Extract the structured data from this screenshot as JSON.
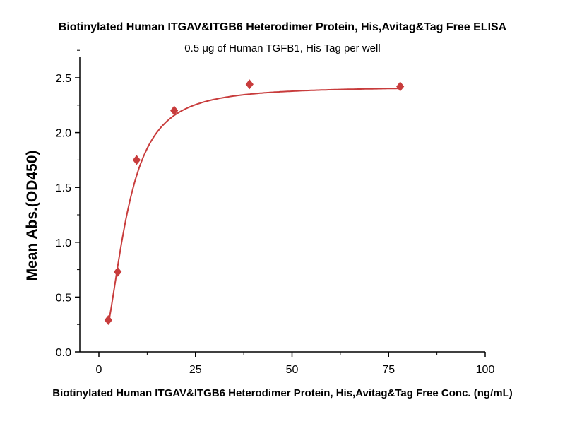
{
  "chart_data": {
    "type": "scatter",
    "title": "Biotinylated Human ITGAV&ITGB6 Heterodimer Protein, His,Avitag&Tag Free ELISA",
    "subtitle": "0.5 μg of Human TGFB1, His Tag per well",
    "xlabel": "Biotinylated Human ITGAV&ITGB6 Heterodimer Protein, His,Avitag&Tag Free Conc. (ng/mL)",
    "ylabel": "Mean Abs.(OD450)",
    "xlim": [
      -5,
      100
    ],
    "ylim": [
      0,
      2.7
    ],
    "xticks": [
      "0",
      "25",
      "50",
      "75",
      "100"
    ],
    "yticks": [
      "0.0",
      "0.5",
      "1.0",
      "1.5",
      "2.0",
      "2.5"
    ],
    "grid": false,
    "color": "#c83c3c",
    "marker": "diamond",
    "points": {
      "x": [
        2.44,
        4.88,
        9.77,
        19.5,
        39,
        78
      ],
      "y": [
        0.29,
        0.73,
        1.75,
        2.2,
        2.44,
        2.42
      ]
    },
    "fit": "sigmoidal curve"
  }
}
